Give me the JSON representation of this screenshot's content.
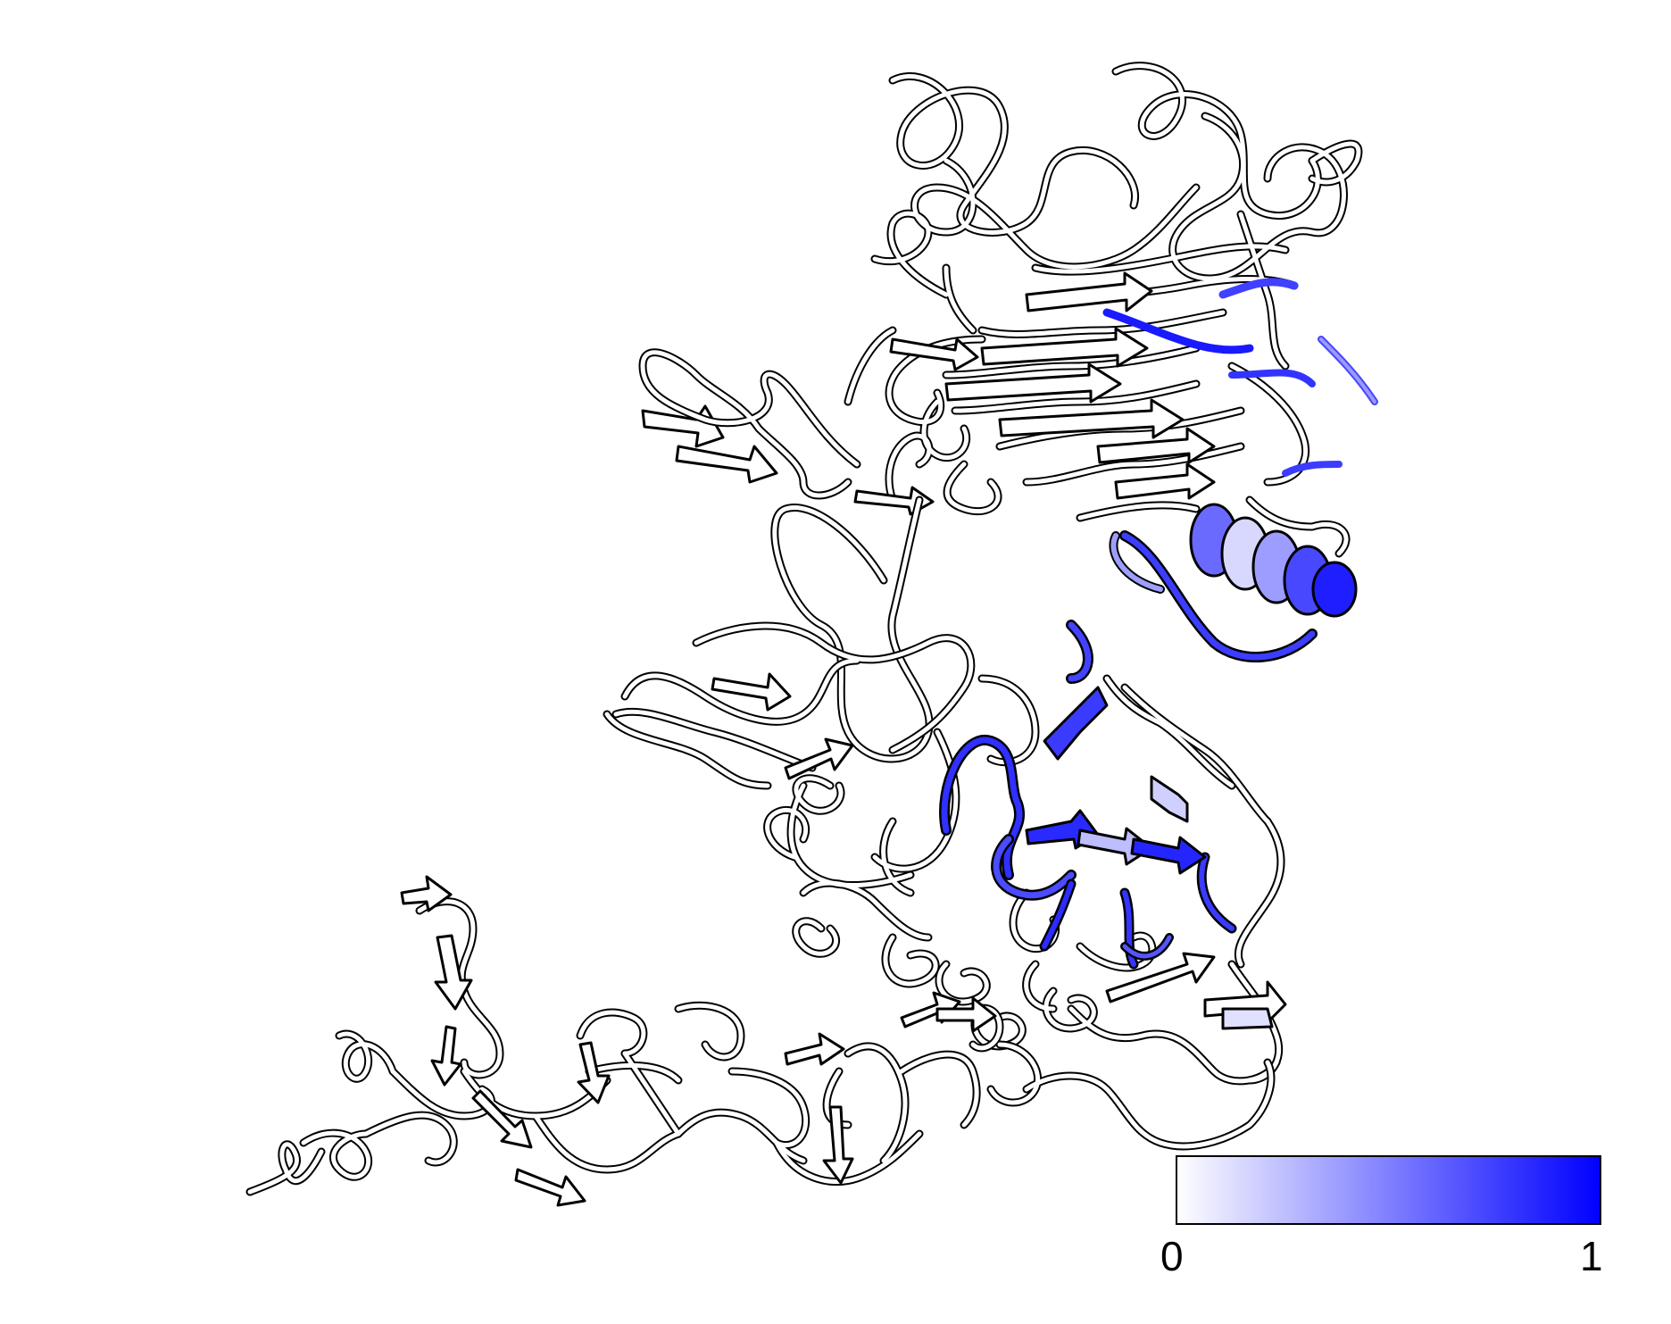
{
  "colorbar": {
    "min_label": "0",
    "max_label": "1",
    "color_low": "#ffffff",
    "color_high": "#0000ff",
    "border_color": "#000000"
  },
  "structure": {
    "ribbon_outline_color": "#000000",
    "ribbon_fill_color": "#ffffff",
    "highlight_color": "#0000ff"
  }
}
